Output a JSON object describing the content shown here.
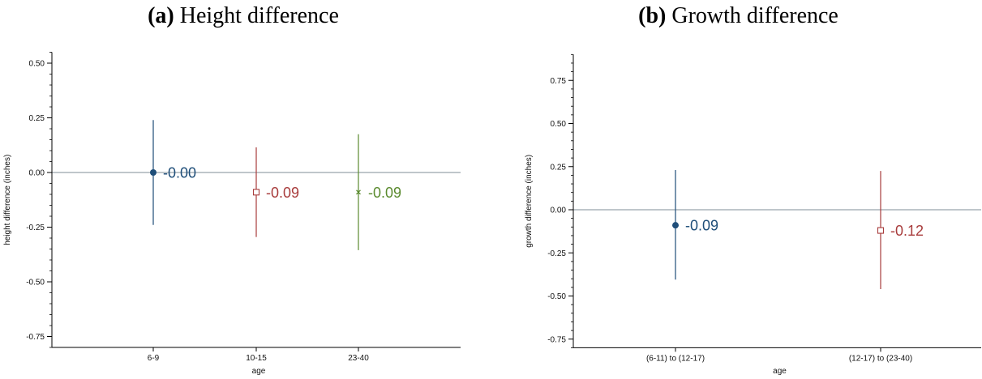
{
  "colors": {
    "navy": "#1f4e79",
    "red": "#a83c3c",
    "green": "#5a8a2e",
    "refline": "#7f8c97",
    "axis": "#000000"
  },
  "chart_data": [
    {
      "type": "scatter",
      "panel_label": "(a)",
      "title": "Height difference",
      "xlabel": "age",
      "ylabel": "height difference (inches)",
      "ylim": [
        -0.8,
        0.55
      ],
      "yticks": [
        0.5,
        0.25,
        0.0,
        -0.25,
        -0.5,
        -0.75
      ],
      "ytick_labels": [
        "0.50",
        "0.25",
        "0.00",
        "-0.25",
        "-0.50",
        "-0.75"
      ],
      "reference_line": 0,
      "points": [
        {
          "category": "6-9",
          "estimate": 0.0,
          "ci": [
            -0.24,
            0.24
          ],
          "label": "-0.00",
          "marker": "circle",
          "color": "#1f4e79"
        },
        {
          "category": "10-15",
          "estimate": -0.09,
          "ci": [
            -0.295,
            0.115
          ],
          "label": "-0.09",
          "marker": "square",
          "color": "#a83c3c"
        },
        {
          "category": "23-40",
          "estimate": -0.09,
          "ci": [
            -0.355,
            0.175
          ],
          "label": "-0.09",
          "marker": "x",
          "color": "#5a8a2e"
        }
      ]
    },
    {
      "type": "scatter",
      "panel_label": "(b)",
      "title": "Growth difference",
      "xlabel": "age",
      "ylabel": "growth difference (inches)",
      "ylim": [
        -0.8,
        0.9
      ],
      "yticks": [
        0.75,
        0.5,
        0.25,
        0.0,
        -0.25,
        -0.5,
        -0.75
      ],
      "ytick_labels": [
        "0.75",
        "0.50",
        "0.25",
        "0.00",
        "-0.25",
        "-0.50",
        "-0.75"
      ],
      "reference_line": 0,
      "points": [
        {
          "category": "(6-11) to (12-17)",
          "estimate": -0.09,
          "ci": [
            -0.405,
            0.23
          ],
          "label": "-0.09",
          "marker": "circle",
          "color": "#1f4e79"
        },
        {
          "category": "(12-17) to (23-40)",
          "estimate": -0.12,
          "ci": [
            -0.46,
            0.225
          ],
          "label": "-0.12",
          "marker": "square",
          "color": "#a83c3c"
        }
      ]
    }
  ]
}
